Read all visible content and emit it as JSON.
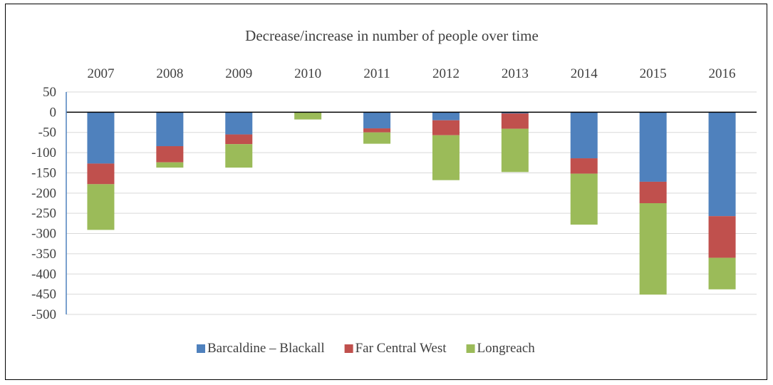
{
  "chart_data": {
    "type": "bar",
    "stacked": true,
    "title": "Decrease/increase in number of people over time",
    "categories": [
      "2007",
      "2008",
      "2009",
      "2010",
      "2011",
      "2012",
      "2013",
      "2014",
      "2015",
      "2016"
    ],
    "series": [
      {
        "name": "Barcaldine – Blackall",
        "color": "#4F81BD",
        "values": [
          -127,
          -84,
          -55,
          0,
          -40,
          -20,
          -3,
          -114,
          -172,
          -257
        ]
      },
      {
        "name": "Far Central West",
        "color": "#C0504D",
        "values": [
          -51,
          -40,
          -24,
          0,
          -10,
          -37,
          -38,
          -38,
          -53,
          -103
        ]
      },
      {
        "name": "Longreach",
        "color": "#9BBB59",
        "values": [
          -113,
          -13,
          -58,
          -18,
          -28,
          -111,
          -107,
          -126,
          -226,
          -78
        ]
      }
    ],
    "ylim": [
      -500,
      50
    ],
    "yticks": [
      50,
      0,
      -50,
      -100,
      -150,
      -200,
      -250,
      -300,
      -350,
      -400,
      -450,
      -500
    ],
    "grid": true,
    "legend_position": "bottom",
    "category_labels_position": "top"
  }
}
